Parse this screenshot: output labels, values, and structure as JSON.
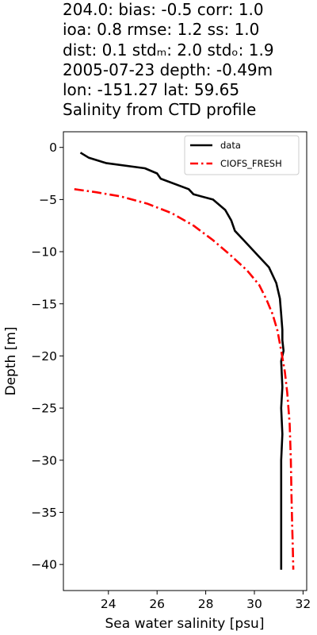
{
  "title_lines": [
    "204.0: bias: -0.5  corr: 1.0",
    "ioa: 0.8  rmse: 1.2  ss: 1.0",
    "dist: 0.1  stdₘ: 2.0  stdₒ: 1.9",
    "2005-07-23 depth: -0.49m",
    "lon: -151.27 lat: 59.65",
    "Salinity from CTD profile"
  ],
  "chart_data": {
    "type": "line",
    "xlabel": "Sea water salinity [psu]",
    "ylabel": "Depth [m]",
    "xlim": [
      22.15,
      32.15
    ],
    "ylim": [
      -42.5,
      1.5
    ],
    "xticks": [
      24,
      26,
      28,
      30,
      32
    ],
    "yticks": [
      0,
      -5,
      -10,
      -15,
      -20,
      -25,
      -30,
      -35,
      -40
    ],
    "grid": false,
    "legend_position": "top-right",
    "series": [
      {
        "name": "data",
        "color": "#000000",
        "style": "solid",
        "x": [
          22.85,
          23.2,
          23.9,
          25.5,
          26.0,
          26.15,
          27.3,
          27.5,
          28.3,
          28.8,
          29.05,
          29.2,
          29.6,
          30.2,
          30.6,
          30.9,
          31.05,
          31.1,
          31.15,
          31.15,
          31.2,
          31.1,
          31.15,
          31.1,
          31.15,
          31.1,
          31.1,
          31.1,
          31.1
        ],
        "y": [
          -0.5,
          -1.0,
          -1.5,
          -2.0,
          -2.5,
          -3.0,
          -4.0,
          -4.5,
          -5.0,
          -6.0,
          -7.0,
          -8.0,
          -9.0,
          -10.5,
          -11.5,
          -13.0,
          -14.5,
          -16.0,
          -17.5,
          -18.5,
          -19.5,
          -20.5,
          -23.0,
          -25.0,
          -27.5,
          -30.0,
          -33.0,
          -36.0,
          -40.5
        ]
      },
      {
        "name": "CIOFS_FRESH",
        "color": "#ff0000",
        "style": "dashdot",
        "x": [
          22.6,
          23.5,
          24.5,
          25.6,
          26.6,
          27.5,
          28.3,
          29.0,
          29.7,
          30.2,
          30.5,
          30.75,
          30.95,
          31.1,
          31.25,
          31.35,
          31.45,
          31.5,
          31.52,
          31.55,
          31.58,
          31.6
        ],
        "y": [
          -4.0,
          -4.3,
          -4.7,
          -5.4,
          -6.3,
          -7.5,
          -8.9,
          -10.3,
          -11.8,
          -13.2,
          -14.6,
          -16.0,
          -17.6,
          -19.5,
          -21.5,
          -23.5,
          -26.5,
          -30.0,
          -33.0,
          -36.0,
          -38.5,
          -40.5
        ]
      }
    ]
  }
}
